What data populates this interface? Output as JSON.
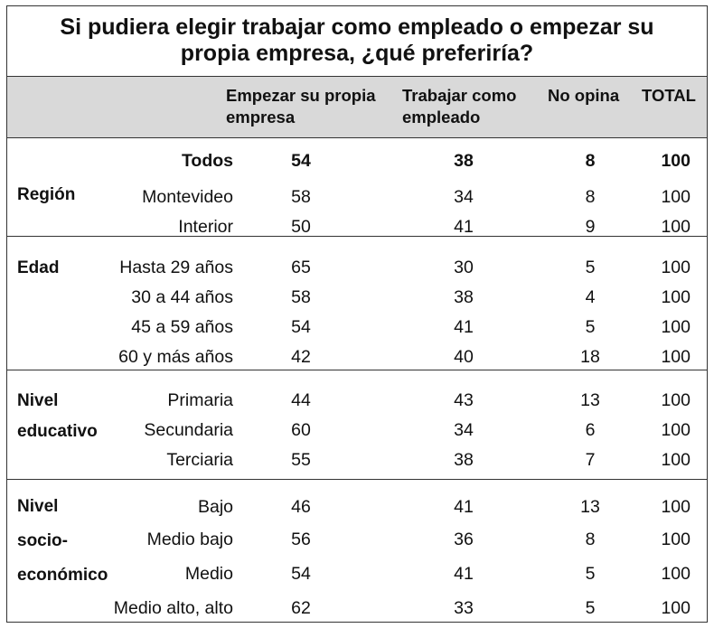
{
  "chart_data": {
    "type": "table",
    "title": "Si pudiera elegir trabajar como empleado o empezar su propia empresa, ¿qué preferiría?",
    "columns": [
      "Empezar su propia empresa",
      "Trabajar como empleado",
      "No opina",
      "TOTAL"
    ],
    "total_row": {
      "label": "Todos",
      "values": [
        54,
        38,
        8,
        100
      ]
    },
    "groups": [
      {
        "name": "Región",
        "rows": [
          {
            "label": "Montevideo",
            "values": [
              58,
              34,
              8,
              100
            ]
          },
          {
            "label": "Interior",
            "values": [
              50,
              41,
              9,
              100
            ]
          }
        ]
      },
      {
        "name": "Edad",
        "rows": [
          {
            "label": "Hasta 29 años",
            "values": [
              65,
              30,
              5,
              100
            ]
          },
          {
            "label": "30 a 44 años",
            "values": [
              58,
              38,
              4,
              100
            ]
          },
          {
            "label": "45 a 59 años",
            "values": [
              54,
              41,
              5,
              100
            ]
          },
          {
            "label": "60 y más años",
            "values": [
              42,
              40,
              18,
              100
            ]
          }
        ]
      },
      {
        "name": "Nivel educativo",
        "rows": [
          {
            "label": "Primaria",
            "values": [
              44,
              43,
              13,
              100
            ]
          },
          {
            "label": "Secundaria",
            "values": [
              60,
              34,
              6,
              100
            ]
          },
          {
            "label": "Terciaria",
            "values": [
              55,
              38,
              7,
              100
            ]
          }
        ]
      },
      {
        "name": "Nivel socio-económico",
        "rows": [
          {
            "label": "Bajo",
            "values": [
              46,
              41,
              13,
              100
            ]
          },
          {
            "label": "Medio bajo",
            "values": [
              56,
              36,
              8,
              100
            ]
          },
          {
            "label": "Medio",
            "values": [
              54,
              41,
              5,
              100
            ]
          },
          {
            "label": "Medio alto, alto",
            "values": [
              62,
              33,
              5,
              100
            ]
          }
        ]
      }
    ]
  },
  "colors": {
    "header_band": "#d9d9d9",
    "rule": "#333333"
  }
}
